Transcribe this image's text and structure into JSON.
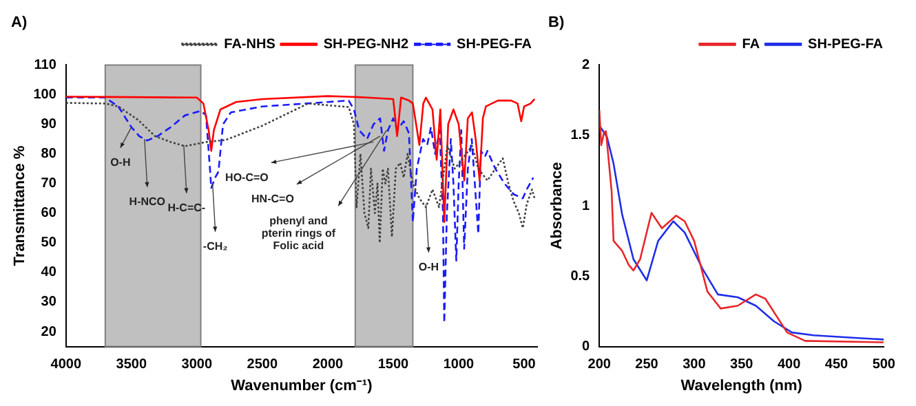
{
  "chart_data": [
    {
      "type": "line",
      "title": "A)",
      "xlabel": "Wavenumber (cm⁻¹)",
      "ylabel": "Transmittance %",
      "xlim": [
        4000,
        400
      ],
      "xticks": [
        4000,
        3500,
        3000,
        2500,
        2000,
        1500,
        1000,
        500
      ],
      "ylim": [
        15,
        110
      ],
      "yticks": [
        20,
        30,
        40,
        50,
        60,
        70,
        80,
        90,
        100,
        110
      ],
      "grid": false,
      "legend": "top right",
      "marker": "none",
      "bands": [
        {
          "axis": "x",
          "from": 3700,
          "to": 2970,
          "color": "#c0c0c0"
        },
        {
          "axis": "x",
          "from": 1790,
          "to": 1350,
          "color": "#c0c0c0"
        }
      ],
      "annotations": [
        {
          "text": "O-H",
          "x": 3500,
          "y": 89
        },
        {
          "text": "H-NCO",
          "x": 3400,
          "y": 85
        },
        {
          "text": "H-C=C-",
          "x": 3100,
          "y": 83
        },
        {
          "text": "-CH₂",
          "x": 2880,
          "y": 70
        },
        {
          "text": "HO-C=O",
          "x": 1650,
          "y": 84
        },
        {
          "text": "HN-C=O",
          "x": 1600,
          "y": 86
        },
        {
          "text": "phenyl and pterin rings of Folic acid",
          "x": 1550,
          "y": 88
        },
        {
          "text": "O-H",
          "x": 1250,
          "y": 63
        }
      ],
      "series": [
        {
          "name": "FA-NHS",
          "color": "#404040",
          "line_style": "dotted",
          "x": [
            4000,
            3700,
            3600,
            3450,
            3320,
            3200,
            3090,
            2930,
            2780,
            2500,
            2150,
            1840,
            1800,
            1780,
            1750,
            1720,
            1690,
            1670,
            1640,
            1620,
            1603,
            1580,
            1560,
            1540,
            1510,
            1480,
            1447,
            1420,
            1390,
            1350,
            1300,
            1250,
            1200,
            1150,
            1086,
            1030,
            968,
            898,
            850,
            780,
            720,
            663,
            620,
            580,
            540,
            510,
            480,
            440,
            420
          ],
          "values": [
            97.2,
            97,
            96,
            91.5,
            86,
            84,
            82.6,
            84,
            84.7,
            89.5,
            97,
            95.8,
            90,
            62,
            80,
            60,
            55,
            75,
            60,
            70,
            50,
            75,
            70,
            75,
            52,
            75,
            77,
            72,
            80,
            70,
            65,
            62,
            68,
            62,
            82.7,
            75,
            78.5,
            82.7,
            75,
            71,
            75,
            78.5,
            70,
            64,
            60,
            55,
            63,
            68,
            65
          ]
        },
        {
          "name": "SH-PEG-NH2",
          "color": "#ff0000",
          "line_style": "solid",
          "x": [
            4000,
            3700,
            3000,
            2950,
            2910,
            2890,
            2870,
            2820,
            2700,
            2500,
            2000,
            1800,
            1700,
            1500,
            1470,
            1440,
            1380,
            1350,
            1300,
            1270,
            1250,
            1200,
            1168,
            1140,
            1110,
            1080,
            1040,
            1000,
            957,
            930,
            898,
            870,
            840,
            815,
            792,
            700,
            600,
            550,
            522,
            500,
            450,
            420
          ],
          "values": [
            99.3,
            99.2,
            99,
            97,
            88,
            81,
            88,
            95,
            97.5,
            98.5,
            99.5,
            99.2,
            99,
            98.5,
            86,
            99,
            98,
            97,
            83,
            97,
            99,
            95,
            78,
            95,
            57,
            90,
            95,
            90,
            71,
            92,
            94,
            85,
            71,
            92,
            96,
            98,
            98,
            97,
            91,
            96,
            97,
            98.5
          ]
        },
        {
          "name": "SH-PEG-FA",
          "color": "#1a1aff",
          "line_style": "dashed",
          "x": [
            4000,
            3700,
            3600,
            3500,
            3440,
            3380,
            3300,
            3200,
            3090,
            2970,
            2930,
            2900,
            2890,
            2860,
            2835,
            2800,
            2740,
            2500,
            2000,
            1840,
            1800,
            1760,
            1700,
            1650,
            1600,
            1570,
            1540,
            1500,
            1470,
            1420,
            1380,
            1350,
            1320,
            1272,
            1240,
            1212,
            1180,
            1145,
            1120,
            1110,
            1090,
            1060,
            1040,
            1018,
            1000,
            980,
            958,
            930,
            900,
            850,
            830,
            800,
            780,
            720,
            650,
            580,
            510,
            480,
            430
          ],
          "values": [
            99,
            99,
            96,
            89,
            86,
            84.5,
            86,
            89,
            93,
            94.5,
            93,
            75,
            68.5,
            72,
            74,
            90,
            94,
            96,
            97.5,
            98,
            95,
            88,
            85,
            90,
            92,
            81,
            88,
            92,
            88,
            91,
            87,
            57,
            75,
            85,
            83,
            89,
            80,
            88,
            60,
            23,
            60,
            85,
            70,
            44,
            70,
            88,
            48,
            75,
            85,
            53,
            81,
            79,
            81,
            75,
            70,
            66.4,
            65,
            68,
            72
          ]
        }
      ]
    },
    {
      "type": "line",
      "title": "B)",
      "xlabel": "Wavelength (nm)",
      "ylabel": "Absorbance",
      "xlim": [
        200,
        500
      ],
      "xticks": [
        200,
        250,
        300,
        350,
        400,
        450,
        500
      ],
      "ylim": [
        0,
        2
      ],
      "yticks": [
        0,
        0.5,
        1,
        1.5,
        2
      ],
      "grid": false,
      "legend": "top right",
      "marker": "none",
      "series": [
        {
          "name": "FA",
          "color": "#e8262b",
          "line_style": "solid",
          "x": [
            200,
            202,
            205,
            207,
            213,
            215,
            224,
            231,
            236,
            243,
            255,
            266,
            281,
            290,
            300,
            314,
            328,
            346,
            365,
            375,
            398,
            417,
            500
          ],
          "values": [
            1.68,
            1.43,
            1.52,
            1.53,
            1.1,
            0.75,
            0.68,
            0.58,
            0.54,
            0.62,
            0.95,
            0.84,
            0.93,
            0.89,
            0.75,
            0.39,
            0.27,
            0.29,
            0.37,
            0.34,
            0.1,
            0.04,
            0.03
          ]
        },
        {
          "name": "SH-PEG-FA",
          "color": "#1f2ee8",
          "line_style": "solid",
          "x": [
            200,
            208,
            215,
            224,
            236,
            250,
            262,
            278,
            290,
            309,
            325,
            346,
            365,
            384,
            403,
            426,
            473,
            500
          ],
          "values": [
            1.57,
            1.49,
            1.3,
            0.94,
            0.62,
            0.47,
            0.75,
            0.89,
            0.81,
            0.55,
            0.37,
            0.35,
            0.29,
            0.18,
            0.1,
            0.08,
            0.06,
            0.05
          ]
        }
      ]
    }
  ]
}
